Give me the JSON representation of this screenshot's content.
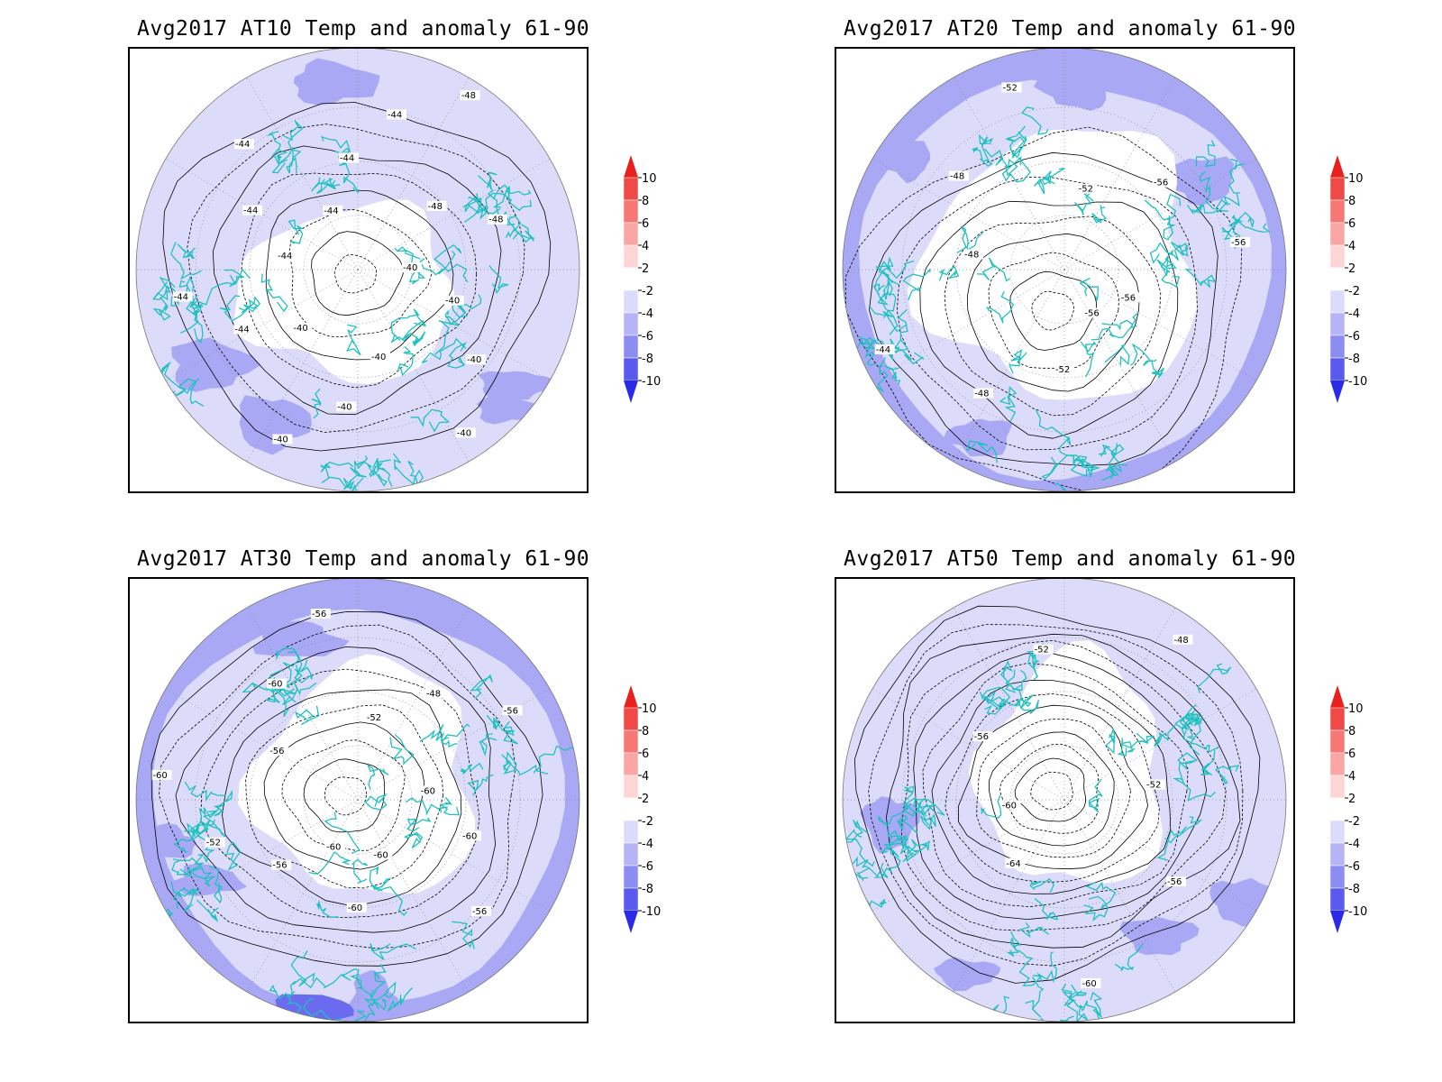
{
  "panels": [
    {
      "title": "Avg2017 AT10 Temp and anomaly 61-90",
      "contour_labels": [
        "-40",
        "-40",
        "-40",
        "-40",
        "-40",
        "-40",
        "-40",
        "-40",
        "-44",
        "-44",
        "-44",
        "-44",
        "-44",
        "-44",
        "-44",
        "-44",
        "-48",
        "-48",
        "-48"
      ]
    },
    {
      "title": "Avg2017 AT20 Temp and anomaly 61-90",
      "contour_labels": [
        "-56",
        "-52",
        "-48",
        "-44",
        "-48",
        "-48",
        "-52",
        "-52",
        "-56",
        "-56",
        "-56"
      ]
    },
    {
      "title": "Avg2017 AT30 Temp and anomaly 61-90",
      "contour_labels": [
        "-60",
        "-56",
        "-52",
        "-60",
        "-56",
        "-60",
        "-56",
        "-52",
        "-48",
        "-56",
        "-60",
        "-60",
        "-56",
        "-60",
        "-60"
      ]
    },
    {
      "title": "Avg2017 AT50 Temp and anomaly 61-90",
      "contour_labels": [
        "-60",
        "-56",
        "-52",
        "-48",
        "-52",
        "-56",
        "-60",
        "-64"
      ]
    }
  ],
  "colorbar": {
    "labels": [
      "10",
      "8",
      "6",
      "4",
      "2",
      "-2",
      "-4",
      "-6",
      "-8",
      "-10"
    ],
    "colors": [
      "#e8201e",
      "#f04a48",
      "#f57876",
      "#f9a6a4",
      "#fcd6d5",
      "#ffffff",
      "#dcdcfa",
      "#b4b4f6",
      "#8c8cf2",
      "#5a5aee",
      "#2a2ae8"
    ]
  },
  "palette": {
    "land_outline": "#20c0c0",
    "fill_light": "#dcdcfa",
    "fill_mid": "#a8a8f5",
    "fill_dark": "#6b6bf0",
    "contour": "#000000"
  }
}
